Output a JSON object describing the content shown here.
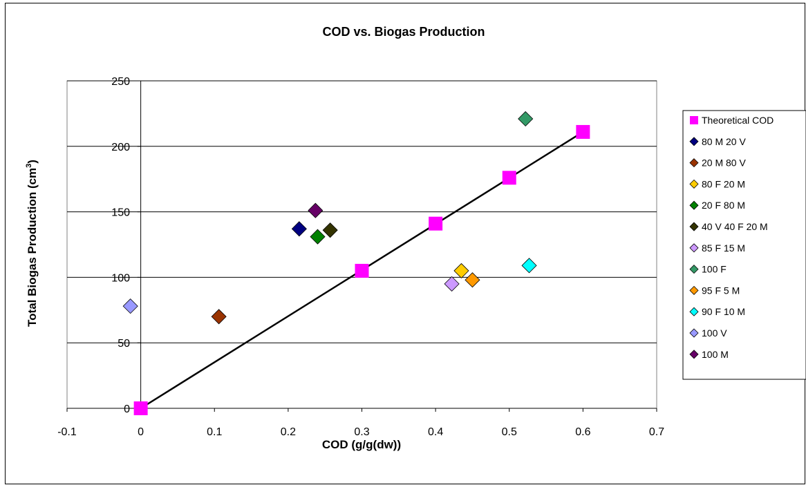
{
  "chart_data": {
    "type": "scatter",
    "title": "COD vs. Biogas Production",
    "xlabel": "COD (g/g(dw))",
    "ylabel_main": "Total Biogas Production (cm",
    "ylabel_sup": "3",
    "ylabel_end": ")",
    "xlim": [
      -0.1,
      0.7
    ],
    "ylim": [
      0,
      250
    ],
    "x_ticks": [
      -0.1,
      0,
      0.1,
      0.2,
      0.3,
      0.4,
      0.5,
      0.6,
      0.7
    ],
    "x_tick_labels": [
      "-0.1",
      "0",
      "0.1",
      "0.2",
      "0.3",
      "0.4",
      "0.5",
      "0.6",
      "0.7"
    ],
    "y_ticks": [
      0,
      50,
      100,
      150,
      200,
      250
    ],
    "y_tick_labels": [
      "0",
      "50",
      "100",
      "150",
      "200",
      "250"
    ],
    "grid": "horizontal",
    "legend_position": "right",
    "series": [
      {
        "name": "Theoretical COD",
        "marker": "square",
        "color": "#FF00FF",
        "points": [
          [
            0,
            0
          ],
          [
            0.3,
            105
          ],
          [
            0.4,
            141
          ],
          [
            0.5,
            176
          ],
          [
            0.6,
            211
          ]
        ]
      },
      {
        "name": "80 M 20 V",
        "marker": "diamond",
        "color": "#000080",
        "points": [
          [
            0.215,
            137
          ]
        ]
      },
      {
        "name": "20 M 80 V",
        "marker": "diamond",
        "color": "#993300",
        "points": [
          [
            0.106,
            70
          ]
        ]
      },
      {
        "name": "80 F 20 M",
        "marker": "diamond",
        "color": "#FFCC00",
        "points": [
          [
            0.435,
            105
          ]
        ]
      },
      {
        "name": "20 F 80 M",
        "marker": "diamond",
        "color": "#008000",
        "points": [
          [
            0.24,
            131
          ]
        ]
      },
      {
        "name": "40 V 40 F 20 M",
        "marker": "diamond",
        "color": "#333300",
        "points": [
          [
            0.257,
            136
          ]
        ]
      },
      {
        "name": "85 F 15 M",
        "marker": "diamond",
        "color": "#CC99FF",
        "points": [
          [
            0.422,
            95
          ]
        ]
      },
      {
        "name": "100 F",
        "marker": "diamond",
        "color": "#339966",
        "points": [
          [
            0.522,
            221
          ]
        ]
      },
      {
        "name": "95 F 5 M",
        "marker": "diamond",
        "color": "#FF9900",
        "points": [
          [
            0.45,
            98
          ]
        ]
      },
      {
        "name": "90 F 10 M",
        "marker": "diamond",
        "color": "#00FFFF",
        "points": [
          [
            0.527,
            109
          ]
        ]
      },
      {
        "name": "100 V",
        "marker": "diamond",
        "color": "#9999FF",
        "points": [
          [
            -0.014,
            78
          ]
        ]
      },
      {
        "name": "100 M",
        "marker": "diamond",
        "color": "#660066",
        "points": [
          [
            0.237,
            151
          ]
        ]
      }
    ],
    "trendline": {
      "series": "Theoretical COD",
      "x": [
        0,
        0.6
      ],
      "y": [
        0,
        211
      ],
      "color": "#000000"
    }
  }
}
